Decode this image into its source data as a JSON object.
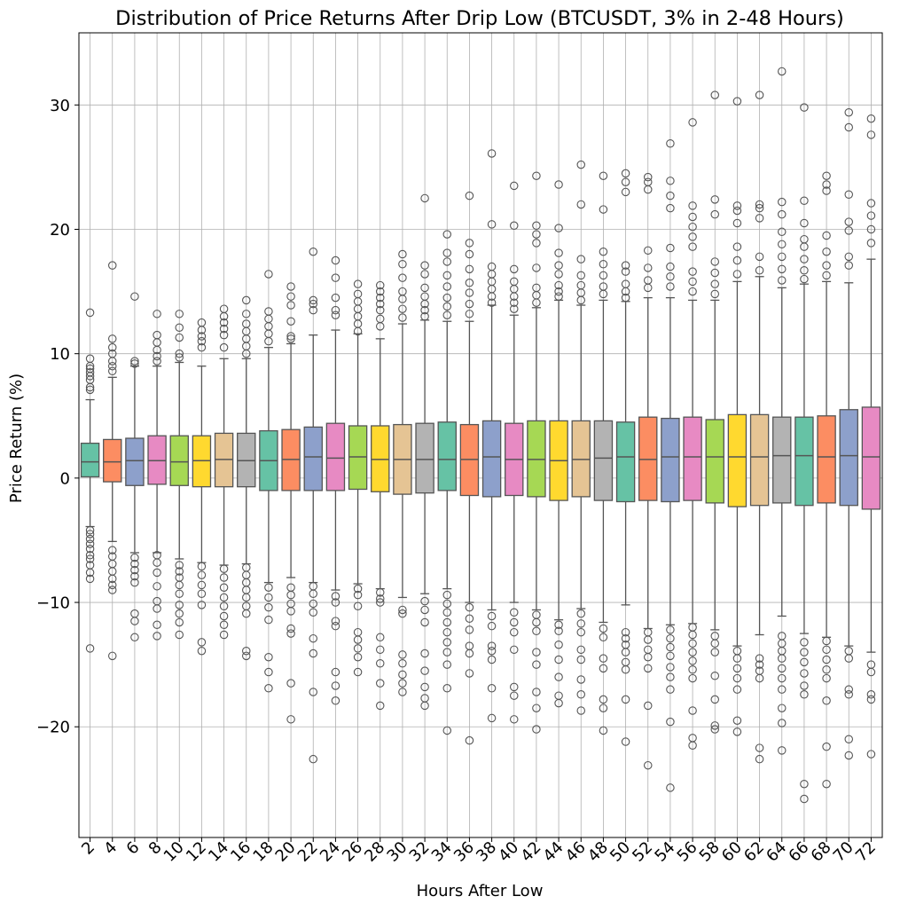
{
  "chart_data": {
    "type": "box",
    "title": "Distribution of Price Returns After Drip Low (BTCUSDT, 3% in 2-48 Hours)",
    "xlabel": "Hours After Low",
    "ylabel": "Price Return (%)",
    "ylim": [
      -28.9,
      35.8
    ],
    "yticks": [
      -20,
      -10,
      0,
      10,
      20,
      30
    ],
    "grid": true,
    "palette": [
      "#66c2a5",
      "#fc8d62",
      "#8da0cb",
      "#e78ac3",
      "#a6d854",
      "#ffd92f",
      "#e5c494",
      "#b3b3b3"
    ],
    "categories": [
      "2",
      "4",
      "6",
      "8",
      "10",
      "12",
      "14",
      "16",
      "18",
      "20",
      "22",
      "24",
      "26",
      "28",
      "30",
      "32",
      "34",
      "36",
      "38",
      "40",
      "42",
      "44",
      "46",
      "48",
      "50",
      "52",
      "54",
      "56",
      "58",
      "60",
      "62",
      "64",
      "66",
      "68",
      "70",
      "72"
    ],
    "boxes": [
      {
        "hours": "2",
        "q1": 0.1,
        "median": 1.3,
        "q3": 2.8,
        "whisker_low": -3.9,
        "whisker_high": 6.3,
        "outliers_high": [
          7.1,
          7.3,
          7.9,
          8.2,
          8.5,
          8.8,
          9.0,
          9.6,
          13.3
        ],
        "outliers_low": [
          -4.2,
          -4.5,
          -4.9,
          -5.3,
          -5.7,
          -6.2,
          -6.5,
          -7.0,
          -7.6,
          -8.1,
          -13.7
        ]
      },
      {
        "hours": "4",
        "q1": -0.3,
        "median": 1.3,
        "q3": 3.1,
        "whisker_low": -5.1,
        "whisker_high": 8.1,
        "outliers_high": [
          8.6,
          9.0,
          9.4,
          10.0,
          10.5,
          11.2,
          17.1
        ],
        "outliers_low": [
          -5.8,
          -6.3,
          -6.9,
          -7.5,
          -8.1,
          -8.6,
          -9.0,
          -14.3
        ]
      },
      {
        "hours": "6",
        "q1": -0.6,
        "median": 1.4,
        "q3": 3.2,
        "whisker_low": -6.0,
        "whisker_high": 9.0,
        "outliers_high": [
          9.2,
          9.4,
          14.6
        ],
        "outliers_low": [
          -6.4,
          -6.9,
          -7.4,
          -7.9,
          -8.4,
          -10.9,
          -11.5,
          -12.8
        ]
      },
      {
        "hours": "8",
        "q1": -0.5,
        "median": 1.4,
        "q3": 3.4,
        "whisker_low": -6.0,
        "whisker_high": 9.0,
        "outliers_high": [
          9.4,
          9.8,
          10.3,
          10.9,
          11.5,
          13.2
        ],
        "outliers_low": [
          -6.2,
          -6.8,
          -7.6,
          -8.7,
          -9.9,
          -10.5,
          -11.8,
          -12.7
        ]
      },
      {
        "hours": "10",
        "q1": -0.6,
        "median": 1.3,
        "q3": 3.4,
        "whisker_low": -6.5,
        "whisker_high": 9.3,
        "outliers_high": [
          9.7,
          10.0,
          11.3,
          12.1,
          13.2
        ],
        "outliers_low": [
          -7.0,
          -7.5,
          -8.0,
          -8.6,
          -9.3,
          -10.2,
          -10.9,
          -11.6,
          -12.6
        ]
      },
      {
        "hours": "12",
        "q1": -0.7,
        "median": 1.4,
        "q3": 3.4,
        "whisker_low": -6.8,
        "whisker_high": 9.0,
        "outliers_high": [
          10.5,
          11.0,
          11.4,
          11.9,
          12.5
        ],
        "outliers_low": [
          -7.1,
          -7.8,
          -8.6,
          -9.3,
          -10.2,
          -13.2,
          -13.9
        ]
      },
      {
        "hours": "14",
        "q1": -0.7,
        "median": 1.5,
        "q3": 3.6,
        "whisker_low": -7.0,
        "whisker_high": 9.6,
        "outliers_high": [
          10.5,
          11.5,
          12.0,
          12.5,
          13.0,
          13.6
        ],
        "outliers_low": [
          -7.3,
          -8.0,
          -8.8,
          -9.6,
          -10.3,
          -11.1,
          -11.8,
          -12.6
        ]
      },
      {
        "hours": "16",
        "q1": -0.7,
        "median": 1.4,
        "q3": 3.6,
        "whisker_low": -6.9,
        "whisker_high": 9.6,
        "outliers_high": [
          10.0,
          10.6,
          11.2,
          11.8,
          12.4,
          13.2,
          14.3
        ],
        "outliers_low": [
          -7.2,
          -7.8,
          -8.4,
          -9.0,
          -9.6,
          -10.3,
          -10.9,
          -13.9,
          -14.3
        ]
      },
      {
        "hours": "18",
        "q1": -1.0,
        "median": 1.4,
        "q3": 3.8,
        "whisker_low": -8.4,
        "whisker_high": 10.5,
        "outliers_high": [
          11.0,
          11.6,
          12.2,
          12.8,
          13.4,
          16.4
        ],
        "outliers_low": [
          -8.8,
          -9.6,
          -10.4,
          -11.4,
          -14.4,
          -15.6,
          -16.9
        ]
      },
      {
        "hours": "20",
        "q1": -1.0,
        "median": 1.5,
        "q3": 3.9,
        "whisker_low": -8.0,
        "whisker_high": 10.8,
        "outliers_high": [
          11.2,
          11.4,
          12.6,
          13.9,
          14.6,
          15.4
        ],
        "outliers_low": [
          -8.8,
          -9.4,
          -10.1,
          -10.7,
          -12.1,
          -12.5,
          -16.5,
          -19.4
        ]
      },
      {
        "hours": "22",
        "q1": -1.0,
        "median": 1.7,
        "q3": 4.1,
        "whisker_low": -8.4,
        "whisker_high": 11.5,
        "outliers_high": [
          13.5,
          14.0,
          14.3,
          18.2
        ],
        "outliers_low": [
          -8.7,
          -9.3,
          -10.1,
          -10.8,
          -12.9,
          -14.1,
          -17.2,
          -22.6
        ]
      },
      {
        "hours": "24",
        "q1": -1.0,
        "median": 1.6,
        "q3": 4.4,
        "whisker_low": -9.0,
        "whisker_high": 11.9,
        "outliers_high": [
          13.1,
          13.5,
          14.5,
          16.1,
          17.5
        ],
        "outliers_low": [
          -9.5,
          -10.0,
          -11.5,
          -11.9,
          -15.6,
          -16.7,
          -17.9
        ]
      },
      {
        "hours": "26",
        "q1": -0.9,
        "median": 1.7,
        "q3": 4.2,
        "whisker_low": -8.5,
        "whisker_high": 11.6,
        "outliers_high": [
          11.8,
          12.4,
          13.0,
          13.6,
          14.2,
          14.8,
          15.6
        ],
        "outliers_low": [
          -8.9,
          -9.4,
          -10.3,
          -12.4,
          -13.0,
          -13.7,
          -14.4,
          -15.6
        ]
      },
      {
        "hours": "28",
        "q1": -1.1,
        "median": 1.5,
        "q3": 4.2,
        "whisker_low": -8.9,
        "whisker_high": 11.2,
        "outliers_high": [
          12.2,
          12.8,
          13.5,
          14.0,
          14.5,
          15.0,
          15.5
        ],
        "outliers_low": [
          -9.2,
          -9.7,
          -10.0,
          -12.8,
          -13.8,
          -14.9,
          -16.5,
          -18.3
        ]
      },
      {
        "hours": "30",
        "q1": -1.3,
        "median": 1.5,
        "q3": 4.3,
        "whisker_low": -9.6,
        "whisker_high": 12.4,
        "outliers_high": [
          12.9,
          13.6,
          14.4,
          15.0,
          16.1,
          17.2,
          18.0
        ],
        "outliers_low": [
          -10.6,
          -10.9,
          -14.2,
          -14.9,
          -15.8,
          -16.5,
          -17.2
        ]
      },
      {
        "hours": "32",
        "q1": -1.2,
        "median": 1.5,
        "q3": 4.4,
        "whisker_low": -9.3,
        "whisker_high": 12.7,
        "outliers_high": [
          13.0,
          13.5,
          14.0,
          14.6,
          15.3,
          16.4,
          17.1,
          22.5
        ],
        "outliers_low": [
          -9.9,
          -10.6,
          -11.6,
          -14.1,
          -15.5,
          -16.8,
          -17.7,
          -18.3
        ]
      },
      {
        "hours": "34",
        "q1": -1.0,
        "median": 1.5,
        "q3": 4.5,
        "whisker_low": -8.9,
        "whisker_high": 12.6,
        "outliers_high": [
          13.1,
          13.8,
          14.5,
          15.4,
          16.3,
          17.4,
          18.1,
          19.6
        ],
        "outliers_low": [
          -9.4,
          -10.1,
          -10.8,
          -11.6,
          -12.4,
          -13.2,
          -14.0,
          -15.0,
          -16.9,
          -20.3
        ]
      },
      {
        "hours": "36",
        "q1": -1.4,
        "median": 1.5,
        "q3": 4.3,
        "whisker_low": -10.0,
        "whisker_high": 12.6,
        "outliers_high": [
          13.2,
          14.0,
          14.9,
          15.7,
          16.8,
          18.0,
          18.9,
          22.7
        ],
        "outliers_low": [
          -10.4,
          -11.3,
          -12.2,
          -13.5,
          -14.1,
          -15.7,
          -21.1
        ]
      },
      {
        "hours": "38",
        "q1": -1.5,
        "median": 1.7,
        "q3": 4.6,
        "whisker_low": -10.6,
        "whisker_high": 13.9,
        "outliers_high": [
          14.1,
          14.6,
          15.2,
          15.8,
          16.4,
          17.0,
          20.4,
          26.1
        ],
        "outliers_low": [
          -11.1,
          -11.9,
          -13.5,
          -13.9,
          -14.6,
          -16.9,
          -19.3
        ]
      },
      {
        "hours": "40",
        "q1": -1.4,
        "median": 1.5,
        "q3": 4.4,
        "whisker_low": -10.0,
        "whisker_high": 13.1,
        "outliers_high": [
          13.6,
          14.1,
          14.6,
          15.2,
          15.8,
          16.8,
          20.3,
          23.5
        ],
        "outliers_low": [
          -10.8,
          -11.6,
          -12.4,
          -13.8,
          -16.8,
          -17.5,
          -19.4
        ]
      },
      {
        "hours": "42",
        "q1": -1.5,
        "median": 1.5,
        "q3": 4.6,
        "whisker_low": -10.6,
        "whisker_high": 13.7,
        "outliers_high": [
          14.1,
          14.7,
          15.3,
          16.9,
          18.9,
          19.6,
          20.3,
          24.3
        ],
        "outliers_low": [
          -11.0,
          -11.6,
          -12.3,
          -14.0,
          -15.0,
          -17.2,
          -18.5,
          -20.2
        ]
      },
      {
        "hours": "44",
        "q1": -1.8,
        "median": 1.4,
        "q3": 4.6,
        "whisker_low": -11.4,
        "whisker_high": 14.3,
        "outliers_high": [
          14.6,
          15.0,
          15.5,
          16.4,
          17.1,
          18.1,
          20.1,
          23.6
        ],
        "outliers_low": [
          -11.8,
          -12.3,
          -13.4,
          -14.6,
          -16.0,
          -17.5,
          -18.1
        ]
      },
      {
        "hours": "46",
        "q1": -1.5,
        "median": 1.5,
        "q3": 4.6,
        "whisker_low": -10.5,
        "whisker_high": 13.9,
        "outliers_high": [
          14.3,
          14.9,
          15.5,
          16.3,
          17.6,
          22.0,
          25.2
        ],
        "outliers_low": [
          -10.9,
          -11.7,
          -12.4,
          -13.8,
          -14.6,
          -16.2,
          -17.4,
          -18.7
        ]
      },
      {
        "hours": "48",
        "q1": -1.8,
        "median": 1.6,
        "q3": 4.6,
        "whisker_low": -11.6,
        "whisker_high": 14.3,
        "outliers_high": [
          14.8,
          15.4,
          16.3,
          17.2,
          18.2,
          21.6,
          24.3
        ],
        "outliers_low": [
          -12.1,
          -12.8,
          -14.5,
          -15.3,
          -17.8,
          -18.5,
          -20.3
        ]
      },
      {
        "hours": "50",
        "q1": -1.9,
        "median": 1.7,
        "q3": 4.5,
        "whisker_low": -10.2,
        "whisker_high": 14.2,
        "outliers_high": [
          14.5,
          15.0,
          15.6,
          16.6,
          17.1,
          23.0,
          23.8,
          24.5
        ],
        "outliers_low": [
          -12.4,
          -12.9,
          -13.4,
          -14.0,
          -14.8,
          -15.4,
          -17.8,
          -21.2
        ]
      },
      {
        "hours": "52",
        "q1": -1.8,
        "median": 1.5,
        "q3": 4.9,
        "whisker_low": -12.1,
        "whisker_high": 14.5,
        "outliers_high": [
          15.3,
          15.9,
          16.9,
          18.3,
          23.2,
          23.8,
          24.2
        ],
        "outliers_low": [
          -12.4,
          -13.0,
          -13.8,
          -14.4,
          -15.3,
          -18.3,
          -23.1
        ]
      },
      {
        "hours": "54",
        "q1": -1.9,
        "median": 1.7,
        "q3": 4.8,
        "whisker_low": -11.8,
        "whisker_high": 14.5,
        "outliers_high": [
          15.4,
          16.2,
          17.0,
          18.5,
          21.7,
          22.7,
          23.9,
          26.9
        ],
        "outliers_low": [
          -12.2,
          -12.9,
          -13.6,
          -14.3,
          -15.2,
          -16.0,
          -17.0,
          -19.6,
          -24.9
        ]
      },
      {
        "hours": "56",
        "q1": -1.8,
        "median": 1.7,
        "q3": 4.9,
        "whisker_low": -11.7,
        "whisker_high": 14.3,
        "outliers_high": [
          15.0,
          15.8,
          16.6,
          18.6,
          19.4,
          20.2,
          21.0,
          21.9,
          28.6
        ],
        "outliers_low": [
          -12.0,
          -12.6,
          -13.3,
          -14.0,
          -14.7,
          -15.4,
          -16.1,
          -18.7,
          -20.9,
          -21.5
        ]
      },
      {
        "hours": "58",
        "q1": -2.0,
        "median": 1.7,
        "q3": 4.7,
        "whisker_low": -12.2,
        "whisker_high": 14.3,
        "outliers_high": [
          14.8,
          15.6,
          16.5,
          17.4,
          21.2,
          22.4,
          30.8
        ],
        "outliers_low": [
          -12.7,
          -13.3,
          -14.0,
          -15.9,
          -17.8,
          -19.9,
          -20.2
        ]
      },
      {
        "hours": "60",
        "q1": -2.3,
        "median": 1.7,
        "q3": 5.1,
        "whisker_low": -13.5,
        "whisker_high": 15.8,
        "outliers_high": [
          16.4,
          17.5,
          18.6,
          20.5,
          21.5,
          21.9,
          30.3
        ],
        "outliers_low": [
          -13.9,
          -14.5,
          -15.3,
          -16.1,
          -17.0,
          -19.5,
          -20.4
        ]
      },
      {
        "hours": "62",
        "q1": -2.2,
        "median": 1.7,
        "q3": 5.1,
        "whisker_low": -12.6,
        "whisker_high": 16.2,
        "outliers_high": [
          16.7,
          17.8,
          20.9,
          21.7,
          22.0,
          30.8
        ],
        "outliers_low": [
          -14.5,
          -15.0,
          -15.5,
          -16.1,
          -21.7,
          -22.6
        ]
      },
      {
        "hours": "64",
        "q1": -2.0,
        "median": 1.8,
        "q3": 4.9,
        "whisker_low": -11.1,
        "whisker_high": 15.3,
        "outliers_high": [
          15.9,
          16.8,
          17.8,
          18.8,
          19.8,
          21.2,
          22.2,
          32.7
        ],
        "outliers_low": [
          -12.7,
          -13.3,
          -13.9,
          -14.5,
          -15.3,
          -16.1,
          -17.0,
          -18.5,
          -19.7,
          -21.9
        ]
      },
      {
        "hours": "66",
        "q1": -2.2,
        "median": 1.8,
        "q3": 4.9,
        "whisker_low": -12.5,
        "whisker_high": 15.6,
        "outliers_high": [
          16.0,
          16.7,
          17.6,
          18.6,
          19.2,
          20.5,
          22.3,
          29.8
        ],
        "outliers_low": [
          -13.2,
          -14.0,
          -14.8,
          -15.7,
          -16.7,
          -17.4,
          -24.6,
          -25.8
        ]
      },
      {
        "hours": "68",
        "q1": -2.0,
        "median": 1.7,
        "q3": 5.0,
        "whisker_low": -12.8,
        "whisker_high": 15.8,
        "outliers_high": [
          16.3,
          17.1,
          18.2,
          19.5,
          23.1,
          23.6,
          24.3
        ],
        "outliers_low": [
          -13.1,
          -13.8,
          -14.6,
          -15.4,
          -16.1,
          -17.9,
          -21.6,
          -24.6
        ]
      },
      {
        "hours": "70",
        "q1": -2.2,
        "median": 1.8,
        "q3": 5.5,
        "whisker_low": -13.5,
        "whisker_high": 15.7,
        "outliers_high": [
          17.1,
          17.8,
          19.9,
          20.6,
          22.8,
          28.2,
          29.4
        ],
        "outliers_low": [
          -13.9,
          -14.5,
          -17.0,
          -17.4,
          -21.0,
          -22.3
        ]
      },
      {
        "hours": "72",
        "q1": -2.5,
        "median": 1.7,
        "q3": 5.7,
        "whisker_low": -14.0,
        "whisker_high": 17.6,
        "outliers_high": [
          18.9,
          20.0,
          21.1,
          22.1,
          27.6,
          28.9
        ],
        "outliers_low": [
          -15.0,
          -15.6,
          -17.4,
          -17.8,
          -22.2
        ]
      }
    ]
  }
}
